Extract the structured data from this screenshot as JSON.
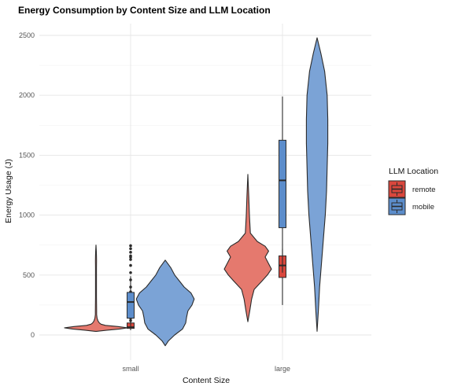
{
  "colors": {
    "remote_violin": "#E5796E",
    "remote_box": "#D9473D",
    "mobile_violin": "#7BA3D6",
    "mobile_box": "#5C8DCB",
    "outline": "#2b2b2b",
    "grid": "#e6e6e6"
  },
  "chart_data": {
    "type": "violin",
    "title": "Energy Consumption by Content Size and LLM Location",
    "xlabel": "Content Size",
    "ylabel": "Energy Usage (J)",
    "categories": [
      "small",
      "large"
    ],
    "yticks": [
      0,
      500,
      1000,
      1500,
      2000,
      2500
    ],
    "ylim": [
      -100,
      2560
    ],
    "grid": true,
    "legend": {
      "title": "LLM Location",
      "position": "right",
      "entries": [
        "remote",
        "mobile"
      ]
    },
    "series": [
      {
        "name": "remote",
        "violins": [
          {
            "category": "small",
            "profile": [
              [
                30,
                0.02
              ],
              [
                40,
                0.35
              ],
              [
                50,
                0.75
              ],
              [
                60,
                1.0
              ],
              [
                70,
                0.7
              ],
              [
                80,
                0.3
              ],
              [
                90,
                0.16
              ],
              [
                100,
                0.11
              ],
              [
                110,
                0.08
              ],
              [
                120,
                0.06
              ],
              [
                140,
                0.035
              ],
              [
                170,
                0.02
              ],
              [
                200,
                0.02
              ],
              [
                260,
                0.018
              ],
              [
                320,
                0.016
              ],
              [
                380,
                0.015
              ],
              [
                440,
                0.015
              ],
              [
                500,
                0.015
              ],
              [
                560,
                0.016
              ],
              [
                620,
                0.018
              ],
              [
                660,
                0.016
              ],
              [
                700,
                0.01
              ],
              [
                750,
                0.0
              ]
            ]
          },
          {
            "category": "large",
            "profile": [
              [
                110,
                0.0
              ],
              [
                200,
                0.06
              ],
              [
                300,
                0.12
              ],
              [
                380,
                0.2
              ],
              [
                450,
                0.45
              ],
              [
                500,
                0.62
              ],
              [
                550,
                0.75
              ],
              [
                600,
                0.65
              ],
              [
                650,
                0.55
              ],
              [
                700,
                0.66
              ],
              [
                740,
                0.55
              ],
              [
                780,
                0.3
              ],
              [
                850,
                0.08
              ],
              [
                1000,
                0.05
              ],
              [
                1150,
                0.03
              ],
              [
                1340,
                0.0
              ]
            ]
          }
        ],
        "boxes": [
          {
            "category": "small",
            "min": 40,
            "q1": 55,
            "median": 65,
            "q3": 100,
            "max": 110,
            "outliers": [
              120,
              140,
              170,
              200,
              240,
              280,
              330,
              360,
              400,
              460,
              520,
              580,
              630,
              650,
              660,
              690,
              720,
              745
            ]
          },
          {
            "category": "large",
            "min": 250,
            "q1": 480,
            "median": 580,
            "q3": 660,
            "max": 720,
            "outliers": []
          }
        ]
      },
      {
        "name": "mobile",
        "violins": [
          {
            "category": "small",
            "profile": [
              [
                -90,
                0.0
              ],
              [
                -50,
                0.1
              ],
              [
                0,
                0.3
              ],
              [
                50,
                0.55
              ],
              [
                100,
                0.65
              ],
              [
                150,
                0.68
              ],
              [
                200,
                0.72
              ],
              [
                250,
                0.85
              ],
              [
                300,
                0.92
              ],
              [
                350,
                0.82
              ],
              [
                400,
                0.6
              ],
              [
                450,
                0.45
              ],
              [
                500,
                0.3
              ],
              [
                560,
                0.18
              ],
              [
                625,
                0.0
              ]
            ]
          },
          {
            "category": "large",
            "profile": [
              [
                30,
                0.0
              ],
              [
                200,
                0.04
              ],
              [
                400,
                0.08
              ],
              [
                600,
                0.14
              ],
              [
                800,
                0.2
              ],
              [
                1000,
                0.26
              ],
              [
                1200,
                0.3
              ],
              [
                1400,
                0.32
              ],
              [
                1600,
                0.34
              ],
              [
                1800,
                0.34
              ],
              [
                2000,
                0.32
              ],
              [
                2200,
                0.24
              ],
              [
                2350,
                0.12
              ],
              [
                2480,
                0.0
              ]
            ]
          }
        ],
        "boxes": [
          {
            "category": "small",
            "min": 60,
            "q1": 140,
            "median": 275,
            "q3": 355,
            "max": 490,
            "outliers": []
          },
          {
            "category": "large",
            "min": 520,
            "q1": 895,
            "median": 1290,
            "q3": 1625,
            "max": 1990,
            "outliers": []
          }
        ]
      }
    ]
  }
}
